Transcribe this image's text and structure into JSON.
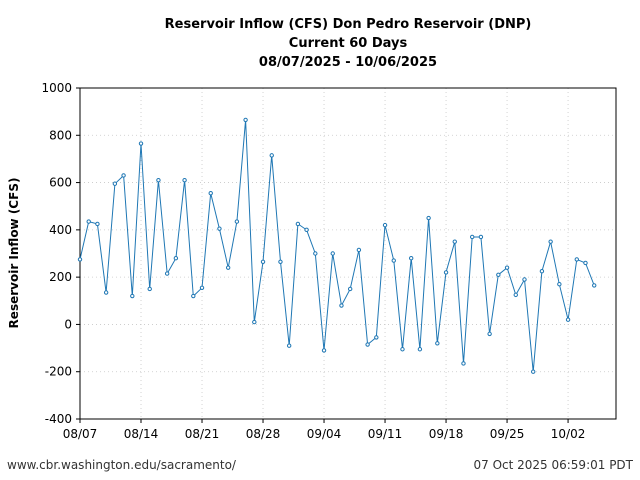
{
  "chart_data": {
    "type": "line",
    "title": [
      "Reservoir Inflow (CFS) Don Pedro Reservoir (DNP)",
      "Current 60 Days",
      "08/07/2025 - 10/06/2025"
    ],
    "xlabel": "",
    "ylabel": "Reservoir Inflow (CFS)",
    "ylim": [
      -400,
      1000
    ],
    "yticks": [
      -400,
      -200,
      0,
      200,
      400,
      600,
      800,
      1000
    ],
    "xticks": [
      {
        "day": 0,
        "label": "08/07"
      },
      {
        "day": 7,
        "label": "08/14"
      },
      {
        "day": 14,
        "label": "08/21"
      },
      {
        "day": 21,
        "label": "08/28"
      },
      {
        "day": 28,
        "label": "09/04"
      },
      {
        "day": 35,
        "label": "09/11"
      },
      {
        "day": 42,
        "label": "09/18"
      },
      {
        "day": 49,
        "label": "09/25"
      },
      {
        "day": 56,
        "label": "10/02"
      }
    ],
    "xlim": [
      0,
      61.5
    ],
    "grid": true,
    "line_color": "#1f77b4",
    "series": [
      {
        "name": "Reservoir Inflow",
        "x": [
          0,
          1,
          2,
          3,
          4,
          5,
          6,
          7,
          8,
          9,
          10,
          11,
          12,
          13,
          14,
          15,
          16,
          17,
          18,
          19,
          20,
          21,
          22,
          23,
          24,
          25,
          26,
          27,
          28,
          29,
          30,
          31,
          32,
          33,
          34,
          35,
          36,
          37,
          38,
          39,
          40,
          41,
          42,
          43,
          44,
          45,
          46,
          47,
          48,
          49,
          50,
          51,
          52,
          53,
          54,
          55,
          56,
          57,
          58,
          59
        ],
        "values": [
          275,
          435,
          425,
          135,
          595,
          630,
          120,
          765,
          150,
          610,
          215,
          280,
          610,
          120,
          155,
          555,
          405,
          240,
          435,
          865,
          10,
          265,
          715,
          265,
          -90,
          425,
          400,
          300,
          -110,
          300,
          80,
          150,
          315,
          -85,
          -55,
          420,
          270,
          -105,
          280,
          -105,
          450,
          -80,
          220,
          350,
          -165,
          370,
          370,
          -40,
          210,
          240,
          125,
          190,
          -200,
          225,
          350,
          170,
          20,
          275,
          260,
          165
        ]
      }
    ]
  },
  "footer": {
    "left": "www.cbr.washington.edu/sacramento/",
    "right": "07 Oct 2025 06:59:01 PDT"
  }
}
